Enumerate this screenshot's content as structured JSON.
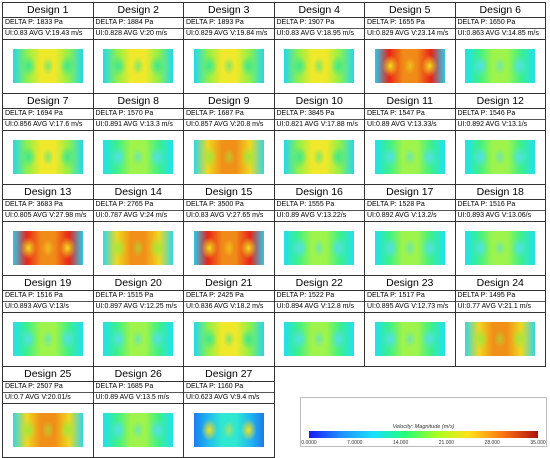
{
  "designs": [
    {
      "title": "Design 1",
      "dp": "DELTA P: 1833 Pa",
      "ui": "UI:0.83 AVG V:19.43 m/s",
      "palette": "mixed"
    },
    {
      "title": "Design 2",
      "dp": "DELTA P: 1884 Pa",
      "ui": "UI:0.828 AVG V:20 m/s",
      "palette": "mixed"
    },
    {
      "title": "Design 3",
      "dp": "DELTA P: 1893 Pa",
      "ui": "UI:0.829 AVG V:19.84 m/s",
      "palette": "mixed"
    },
    {
      "title": "Design 4",
      "dp": "DELTA P: 1907 Pa",
      "ui": "UI:0.83 AVG V:18.95 m/s",
      "palette": "mixed"
    },
    {
      "title": "Design 5",
      "dp": "DELTA P: 1655 Pa",
      "ui": "UI:0.829 AVG V:23.14 m/s",
      "palette": "hot"
    },
    {
      "title": "Design 6",
      "dp": "DELTA P: 1650 Pa",
      "ui": "UI:0.863 AVG V:14.85 m/s",
      "palette": "cool"
    },
    {
      "title": "Design 7",
      "dp": "DELTA P: 1694 Pa",
      "ui": "UI:0.856 AVG V:17.6 m/s",
      "palette": "mixed"
    },
    {
      "title": "Design 8",
      "dp": "DELTA P: 1570 Pa",
      "ui": "UI:0.891 AVG V:13.3 m/s",
      "palette": "cool"
    },
    {
      "title": "Design 9",
      "dp": "DELTA P: 1687 Pa",
      "ui": "UI:0.857 AVG V:20.8 m/s",
      "palette": "warm"
    },
    {
      "title": "Design 10",
      "dp": "DELTA P: 3845 Pa",
      "ui": "UI:0.821 AVG V:17.88 m/s",
      "palette": "mixed"
    },
    {
      "title": "Design 11",
      "dp": "DELTA P: 1547 Pa",
      "ui": "UI:0.89 AVG V:13.33/s",
      "palette": "cool"
    },
    {
      "title": "Design 12",
      "dp": "DELTA P: 1546 Pa",
      "ui": "UI:0.892 AVG V:13.1/s",
      "palette": "cool"
    },
    {
      "title": "Design 13",
      "dp": "DELTA P: 3683 Pa",
      "ui": "UI:0.805 AVG V:27.98 m/s",
      "palette": "hot"
    },
    {
      "title": "Design 14",
      "dp": "DELTA P: 2765 Pa",
      "ui": "UI:0.787 AVG V:24 m/s",
      "palette": "warm"
    },
    {
      "title": "Design 15",
      "dp": "DELTA P: 3500 Pa",
      "ui": "UI:0.83 AVG V:27.65 m/s",
      "palette": "hot"
    },
    {
      "title": "Design 16",
      "dp": "DELTA P: 1555 Pa",
      "ui": "UI:0.89 AVG V:13.22/s",
      "palette": "cool"
    },
    {
      "title": "Design 17",
      "dp": "DELTA P: 1528 Pa",
      "ui": "UI:0.892 AVG V:13.2/s",
      "palette": "cool"
    },
    {
      "title": "Design 18",
      "dp": "DELTA P: 1516 Pa",
      "ui": "UI:0.893 AVG V:13.06/s",
      "palette": "cool"
    },
    {
      "title": "Design 19",
      "dp": "DELTA P: 1516 Pa",
      "ui": "UI:0.893 AVG V:13/s",
      "palette": "cool"
    },
    {
      "title": "Design 20",
      "dp": "DELTA P: 1515 Pa",
      "ui": "UI:0.897 AVG V:12.25 m/s",
      "palette": "cool"
    },
    {
      "title": "Design 21",
      "dp": "DELTA P: 2425 Pa",
      "ui": "UI:0.836 AVG V:18.2 m/s",
      "palette": "mixed"
    },
    {
      "title": "Design 22",
      "dp": "DELTA P: 1522 Pa",
      "ui": "UI:0.894 AVG V:12.8 m/s",
      "palette": "cool"
    },
    {
      "title": "Design 23",
      "dp": "DELTA P: 1517 Pa",
      "ui": "UI:0.895 AVG V:12.73 m/s",
      "palette": "cool"
    },
    {
      "title": "Design 24",
      "dp": "DELTA P: 1495 Pa",
      "ui": "UI:0.77 AVG V:21.1 m/s",
      "palette": "warm"
    },
    {
      "title": "Design 25",
      "dp": "DELTA P: 2507 Pa",
      "ui": "UI:0.7 AVG V:20.01/s",
      "palette": "warm"
    },
    {
      "title": "Design 26",
      "dp": "DELTA P: 1685 Pa",
      "ui": "UI:0.89 AVG V:13.5 m/s",
      "palette": "cool"
    },
    {
      "title": "Design 27",
      "dp": "DELTA P: 1160 Pa",
      "ui": "UI:0.623 AVG V:9.4 m/s",
      "palette": "blue"
    }
  ],
  "palettes": {
    "cool": [
      "#22e0f0",
      "#3cf08a",
      "#9ef44a",
      "#50e0e8"
    ],
    "mixed": [
      "#22d8ee",
      "#8ef04a",
      "#f0e82a",
      "#3ce890"
    ],
    "warm": [
      "#30d8e8",
      "#f0d820",
      "#f09018",
      "#a0e83a"
    ],
    "hot": [
      "#2cc8ee",
      "#e82418",
      "#f08a18",
      "#f0e020"
    ],
    "blue": [
      "#1a7cf0",
      "#20b8f0",
      "#30e8d0",
      "#f0e020"
    ]
  },
  "legend": {
    "title": "Velocity: Magnitude (m/s)",
    "ticks": [
      "0.0000",
      "7.0000",
      "14.000",
      "21.000",
      "28.000",
      "35.000"
    ]
  }
}
